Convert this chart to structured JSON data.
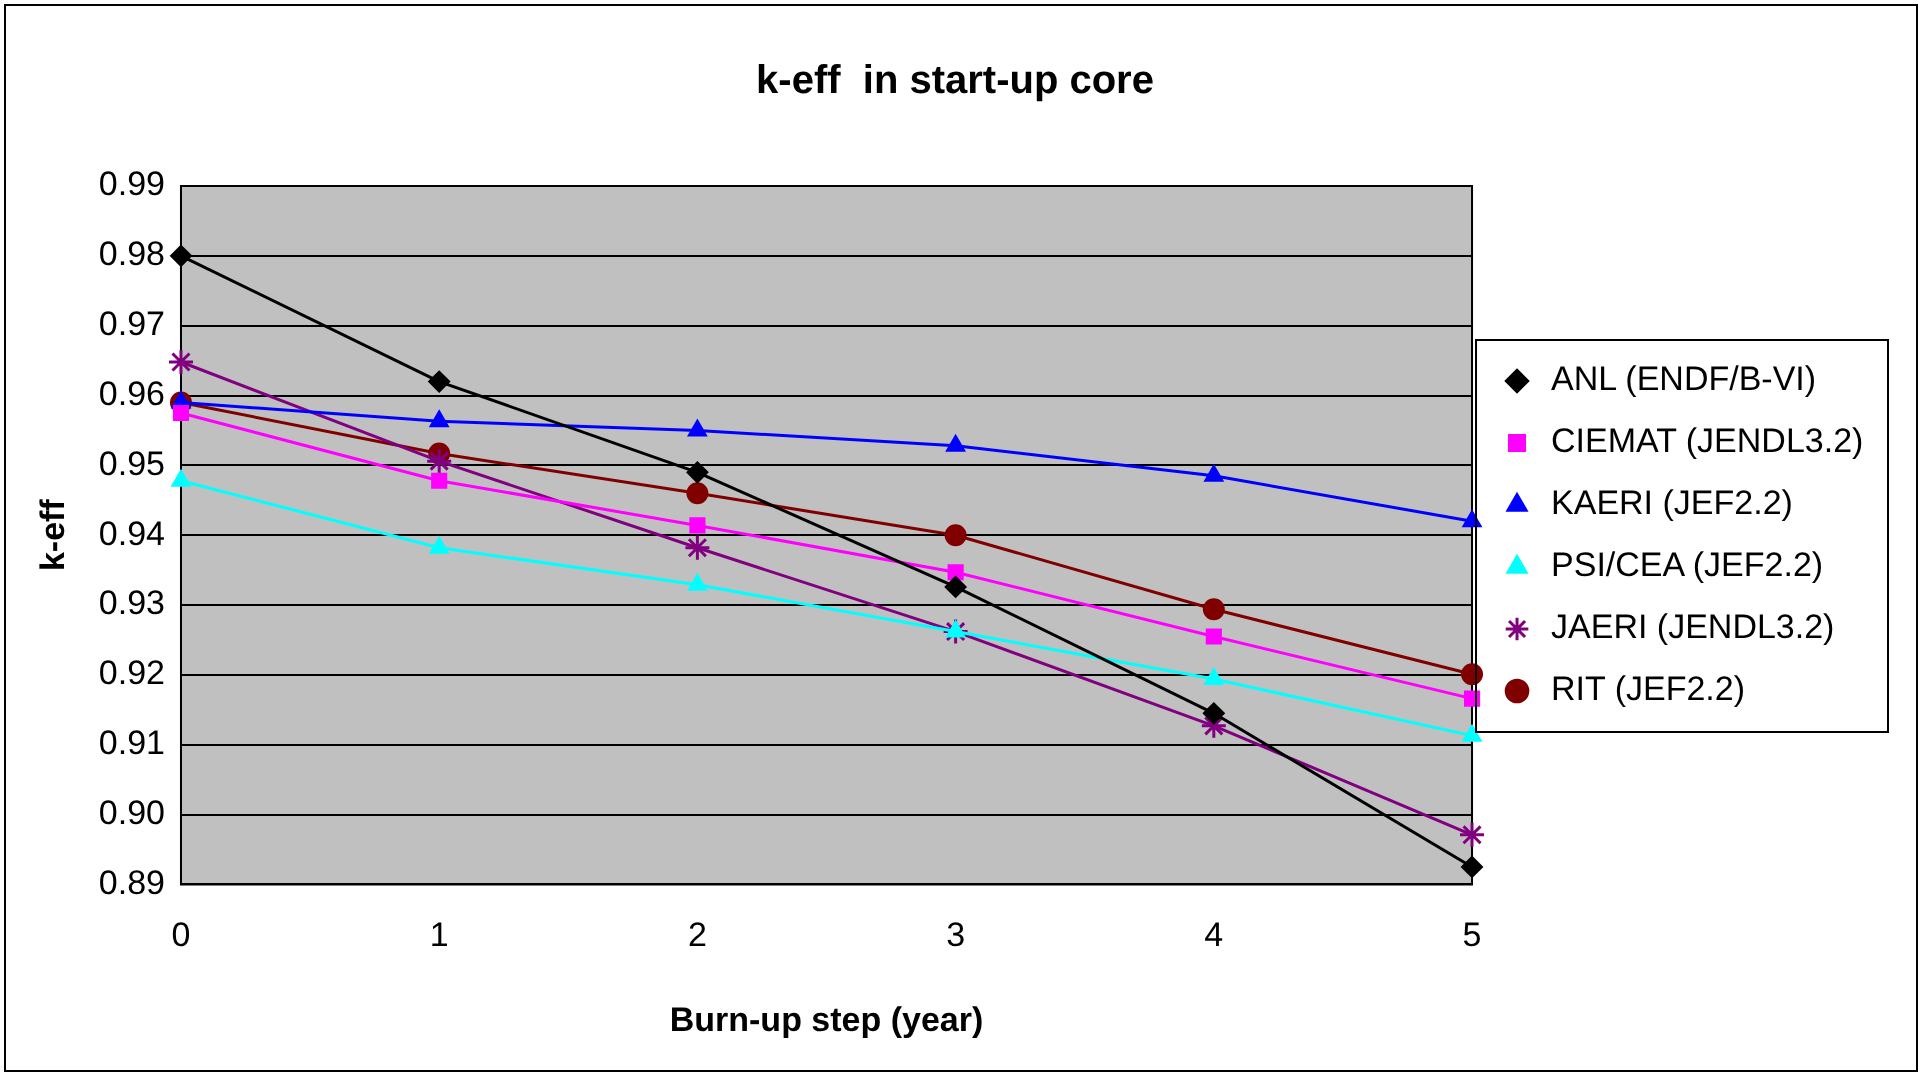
{
  "chart_data": {
    "type": "line",
    "title": "k-eff  in start-up core",
    "xlabel": "Burn-up step (year)",
    "ylabel": "k-eff",
    "categories": [
      "0",
      "1",
      "2",
      "3",
      "4",
      "5"
    ],
    "series": [
      {
        "name": "ANL (ENDF/B-VI)",
        "color": "#000000",
        "marker": "diamond",
        "values": [
          0.98,
          0.962,
          0.949,
          0.9326,
          0.9145,
          0.8925
        ]
      },
      {
        "name": "CIEMAT (JENDL3.2)",
        "color": "#ff00ff",
        "marker": "square",
        "values": [
          0.9575,
          0.9478,
          0.9414,
          0.9347,
          0.9255,
          0.9166
        ]
      },
      {
        "name": "KAERI (JEF2.2)",
        "color": "#0000ff",
        "marker": "triangle",
        "values": [
          0.959,
          0.9563,
          0.955,
          0.9528,
          0.9485,
          0.942
        ]
      },
      {
        "name": "PSI/CEA (JEF2.2)",
        "color": "#00ffff",
        "marker": "triangle",
        "values": [
          0.9478,
          0.9382,
          0.9329,
          0.9262,
          0.9194,
          0.9113
        ]
      },
      {
        "name": "JAERI (JENDL3.2)",
        "color": "#800080",
        "marker": "cross",
        "values": [
          0.9648,
          0.9506,
          0.9382,
          0.9262,
          0.9127,
          0.8971
        ]
      },
      {
        "name": "RIT (JEF2.2)",
        "color": "#800000",
        "marker": "circle",
        "values": [
          0.959,
          0.9517,
          0.946,
          0.94,
          0.9294,
          0.9201
        ]
      }
    ],
    "ylim": [
      0.89,
      0.99
    ],
    "yticks": [
      0.89,
      {
        "value": 0.9,
        "label": "0.90"
      },
      0.91,
      0.92,
      0.93,
      0.94,
      0.95,
      0.96,
      0.97,
      0.98,
      0.99
    ],
    "grid": "y",
    "legend": "right",
    "line_style": "solid"
  }
}
